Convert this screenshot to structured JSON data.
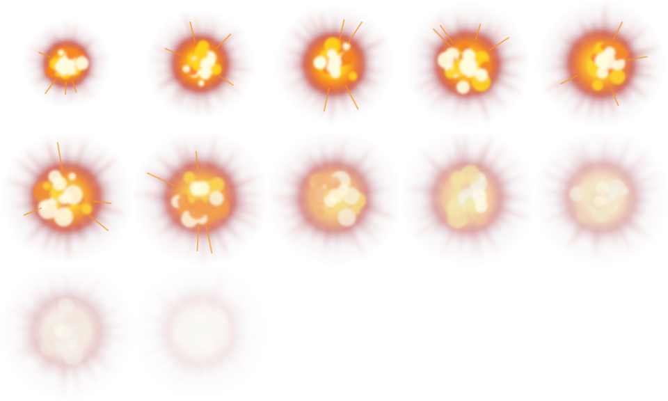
{
  "sprite_sheet": {
    "columns": 5,
    "frame_count": 12,
    "frames": [
      {
        "index": 1,
        "size": 0.4,
        "bright": 1.0,
        "fade": 0.0,
        "alpha": 1.0
      },
      {
        "index": 2,
        "size": 0.65,
        "bright": 1.0,
        "fade": 0.0,
        "alpha": 1.0
      },
      {
        "index": 3,
        "size": 0.78,
        "bright": 1.0,
        "fade": 0.0,
        "alpha": 1.0
      },
      {
        "index": 4,
        "size": 0.85,
        "bright": 0.95,
        "fade": 0.05,
        "alpha": 1.0
      },
      {
        "index": 5,
        "size": 0.9,
        "bright": 0.9,
        "fade": 0.1,
        "alpha": 1.0
      },
      {
        "index": 6,
        "size": 0.95,
        "bright": 0.85,
        "fade": 0.15,
        "alpha": 1.0
      },
      {
        "index": 7,
        "size": 1.0,
        "bright": 0.75,
        "fade": 0.25,
        "alpha": 0.95
      },
      {
        "index": 8,
        "size": 1.0,
        "bright": 0.55,
        "fade": 0.45,
        "alpha": 0.85
      },
      {
        "index": 9,
        "size": 1.0,
        "bright": 0.4,
        "fade": 0.6,
        "alpha": 0.75
      },
      {
        "index": 10,
        "size": 1.0,
        "bright": 0.25,
        "fade": 0.75,
        "alpha": 0.65
      },
      {
        "index": 11,
        "size": 1.0,
        "bright": 0.05,
        "fade": 0.95,
        "alpha": 0.5
      },
      {
        "index": 12,
        "size": 1.0,
        "bright": 0.0,
        "fade": 1.0,
        "alpha": 0.25
      }
    ]
  },
  "colors": {
    "core": "#fffbe0",
    "yellow": "#ffd21a",
    "orange": "#f5841c",
    "red": "#c83a2a",
    "haze": "#c8a0a8",
    "smoke": "#e6ddd8",
    "background": "#ffffff"
  }
}
